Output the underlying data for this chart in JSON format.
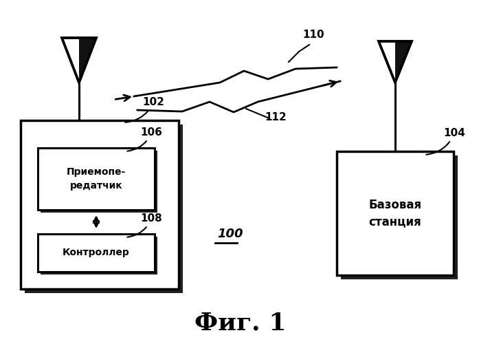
{
  "title": "Фиг. 1",
  "bg_color": "#ffffff",
  "label_102": "102",
  "label_104": "104",
  "label_106": "106",
  "label_108": "108",
  "label_110": "110",
  "label_112": "112",
  "label_100": "100",
  "text_transceiver_line1": "Приемопе-",
  "text_transceiver_line2": "редатчик",
  "text_controller": "Контроллер",
  "text_base_station_line1": "Базовая",
  "text_base_station_line2": "станция"
}
